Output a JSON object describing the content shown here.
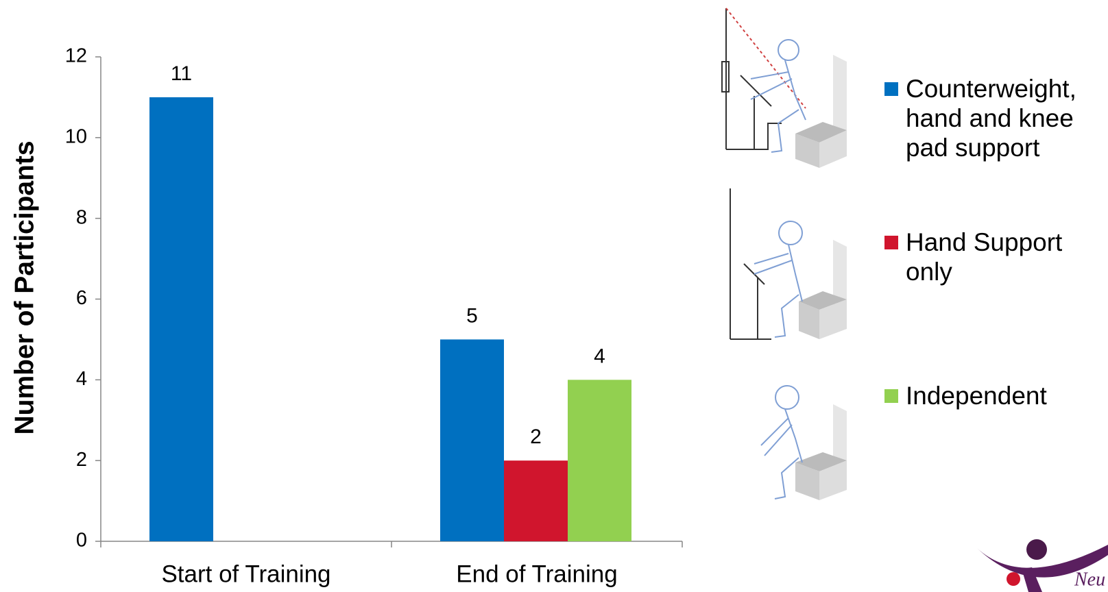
{
  "chart_data": {
    "type": "bar",
    "y_label": "Number of Participants",
    "categories": [
      "Start of Training",
      "End of Training"
    ],
    "series": [
      {
        "name": "Counterweight, hand and knee pad support",
        "color": "#0070c0",
        "values": [
          11,
          5
        ]
      },
      {
        "name": "Hand Support only",
        "color": "#d0152d",
        "values": [
          null,
          2
        ]
      },
      {
        "name": "Independent",
        "color": "#92d050",
        "values": [
          null,
          4
        ]
      }
    ],
    "ylim": [
      0,
      12
    ],
    "yticks": [
      0,
      2,
      4,
      6,
      8,
      10,
      12
    ],
    "grid": false
  },
  "logo": {
    "text": "Neu"
  }
}
